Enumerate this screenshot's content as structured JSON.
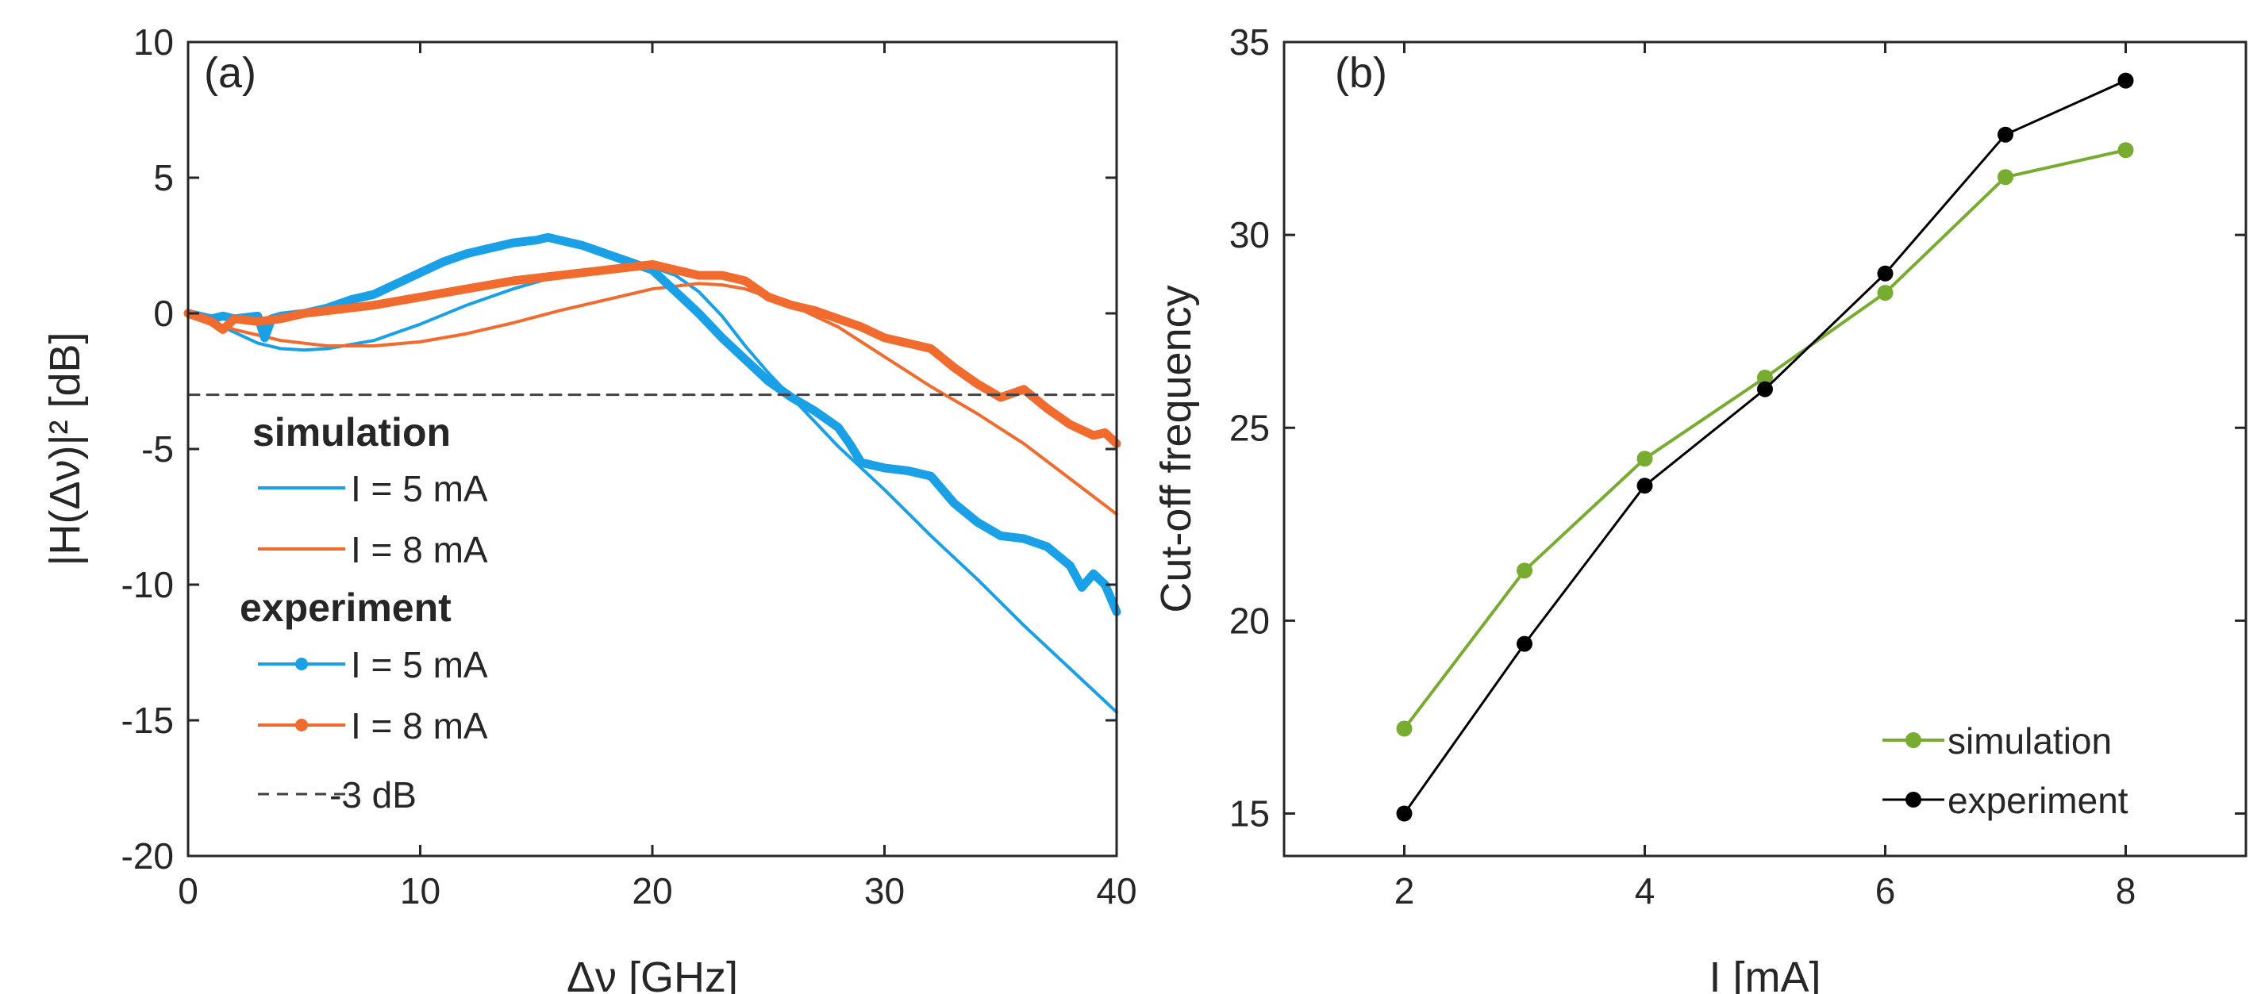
{
  "colors": {
    "blue": "#1AA0E6",
    "orange": "#F26B2E",
    "green": "#77AC30",
    "black": "#000000",
    "dash": "#404040",
    "axis": "#262626"
  },
  "chart_data": [
    {
      "type": "line",
      "panel_label": "(a)",
      "xlabel": "Δν [GHz]",
      "ylabel": "|H(Δν)|² [dB]",
      "xlim": [
        0,
        40
      ],
      "ylim": [
        -20,
        10
      ],
      "xticks": [
        0,
        10,
        20,
        30,
        40
      ],
      "yticks": [
        10,
        5,
        0,
        -5,
        -10,
        -15,
        -20
      ],
      "xtick_labels": [
        "0",
        "10",
        "20",
        "30",
        "40"
      ],
      "ytick_labels": [
        "10",
        "5",
        "0",
        "-5",
        "-10",
        "-15",
        "-20"
      ],
      "legend": {
        "sim_header": "simulation",
        "sim_5": "I = 5 mA",
        "sim_8": "I = 8 mA",
        "exp_header": "experiment",
        "exp_5": "I = 5 mA",
        "exp_8": "I = 8 mA",
        "ref": "-3 dB",
        "placement": "left"
      },
      "series": [
        {
          "name": "simulation I = 5 mA",
          "color": "blue",
          "style": "thin",
          "x": [
            0,
            1,
            2,
            3,
            4,
            5,
            6,
            8,
            10,
            12,
            14,
            16,
            18,
            20,
            21,
            22,
            23,
            24,
            25,
            26,
            27,
            28,
            30,
            32,
            34,
            36,
            38,
            40
          ],
          "y": [
            0,
            -0.3,
            -0.7,
            -1.1,
            -1.3,
            -1.35,
            -1.3,
            -1.0,
            -0.4,
            0.3,
            0.9,
            1.4,
            1.7,
            1.7,
            1.4,
            0.8,
            -0.1,
            -1.2,
            -2.2,
            -3.1,
            -4.0,
            -4.9,
            -6.5,
            -8.2,
            -9.8,
            -11.5,
            -13.1,
            -14.7
          ]
        },
        {
          "name": "simulation I = 8 mA",
          "color": "orange",
          "style": "thin",
          "x": [
            0,
            2,
            4,
            6,
            8,
            10,
            12,
            14,
            16,
            18,
            20,
            22,
            23,
            24,
            26,
            28,
            30,
            32,
            34,
            36,
            38,
            40
          ],
          "y": [
            0,
            -0.6,
            -1.0,
            -1.2,
            -1.2,
            -1.05,
            -0.75,
            -0.35,
            0.1,
            0.5,
            0.9,
            1.1,
            1.05,
            0.9,
            0.3,
            -0.5,
            -1.6,
            -2.7,
            -3.7,
            -4.8,
            -6.1,
            -7.4
          ]
        },
        {
          "name": "experiment I = 5 mA",
          "color": "blue",
          "style": "thick",
          "x": [
            0,
            0.5,
            1,
            1.5,
            2,
            3,
            3.3,
            3.6,
            4,
            5,
            6,
            7,
            8,
            9,
            10,
            11,
            12,
            13,
            14,
            15,
            15.5,
            16,
            17,
            18,
            19,
            20,
            21,
            22,
            23,
            24,
            25,
            26,
            27,
            28,
            28.5,
            29,
            30,
            31,
            32,
            33,
            34,
            35,
            36,
            37,
            38,
            38.5,
            39,
            39.5,
            40
          ],
          "y": [
            0,
            -0.1,
            -0.2,
            -0.1,
            -0.2,
            -0.1,
            -0.9,
            -0.2,
            -0.1,
            0,
            0.2,
            0.5,
            0.7,
            1.1,
            1.5,
            1.9,
            2.2,
            2.4,
            2.6,
            2.7,
            2.8,
            2.7,
            2.5,
            2.2,
            1.9,
            1.6,
            0.8,
            0,
            -0.9,
            -1.7,
            -2.5,
            -3.1,
            -3.6,
            -4.2,
            -4.8,
            -5.5,
            -5.7,
            -5.8,
            -6.0,
            -7.0,
            -7.7,
            -8.2,
            -8.3,
            -8.6,
            -9.3,
            -10.1,
            -9.6,
            -10.0,
            -11.0
          ]
        },
        {
          "name": "experiment I = 8 mA",
          "color": "orange",
          "style": "thick",
          "x": [
            0,
            1,
            1.5,
            2,
            3,
            4,
            5,
            6,
            8,
            10,
            12,
            14,
            15,
            16,
            17,
            18,
            19,
            20,
            21,
            22,
            23,
            24,
            25,
            26,
            27,
            28,
            29,
            30,
            31,
            32,
            33,
            34,
            35,
            36,
            37,
            38,
            39,
            39.5,
            40
          ],
          "y": [
            0,
            -0.3,
            -0.6,
            -0.2,
            -0.3,
            -0.2,
            0,
            0.1,
            0.3,
            0.6,
            0.9,
            1.2,
            1.3,
            1.4,
            1.5,
            1.6,
            1.7,
            1.8,
            1.6,
            1.4,
            1.4,
            1.2,
            0.6,
            0.3,
            0.1,
            -0.2,
            -0.5,
            -0.9,
            -1.1,
            -1.3,
            -2.0,
            -2.6,
            -3.1,
            -2.8,
            -3.5,
            -4.1,
            -4.5,
            -4.4,
            -4.8
          ]
        },
        {
          "name": "-3 dB",
          "color": "dash",
          "style": "dashed",
          "x": [
            0,
            40
          ],
          "y": [
            -3,
            -3
          ]
        }
      ]
    },
    {
      "type": "line",
      "panel_label": "(b)",
      "xlabel": "I [mA]",
      "ylabel": "Cut-off frequency",
      "xlim": [
        1,
        9
      ],
      "ylim": [
        13.9,
        35
      ],
      "xticks": [
        2,
        4,
        6,
        8
      ],
      "yticks": [
        15,
        20,
        25,
        30,
        35
      ],
      "xtick_labels": [
        "2",
        "4",
        "6",
        "8"
      ],
      "ytick_labels": [
        "15",
        "20",
        "25",
        "30",
        "35"
      ],
      "legend": {
        "sim": "simulation",
        "exp": "experiment",
        "placement": "bottom-right"
      },
      "categories": [
        2,
        3,
        4,
        5,
        6,
        7,
        8
      ],
      "series": [
        {
          "name": "simulation",
          "color": "green",
          "values": [
            17.2,
            21.3,
            24.2,
            26.3,
            28.5,
            31.5,
            32.2
          ]
        },
        {
          "name": "experiment",
          "color": "black",
          "values": [
            15.0,
            19.4,
            23.5,
            26.0,
            29.0,
            32.6,
            34.0
          ]
        }
      ]
    }
  ]
}
